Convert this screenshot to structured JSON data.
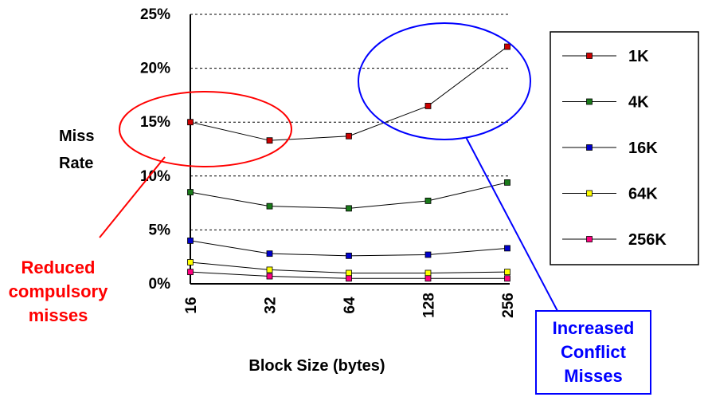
{
  "chart_data": {
    "type": "line",
    "x": [
      "16",
      "32",
      "64",
      "128",
      "256"
    ],
    "xlabel": "Block Size (bytes)",
    "ylabel_lines": [
      "Miss",
      "Rate"
    ],
    "ylim": [
      0,
      25
    ],
    "yticks": [
      "0%",
      "5%",
      "10%",
      "15%",
      "20%",
      "25%"
    ],
    "ytick_values": [
      0,
      5,
      10,
      15,
      20,
      25
    ],
    "grid": "horizontal dashed",
    "legend_position": "right",
    "series": [
      {
        "name": "1K",
        "color": "#cc0000",
        "values": [
          15.0,
          13.3,
          13.7,
          16.5,
          22.0
        ]
      },
      {
        "name": "4K",
        "color": "#1a7a1a",
        "values": [
          8.5,
          7.2,
          7.0,
          7.7,
          9.4
        ]
      },
      {
        "name": "16K",
        "color": "#0000cc",
        "values": [
          4.0,
          2.8,
          2.6,
          2.7,
          3.3
        ]
      },
      {
        "name": "64K",
        "color": "#ffff00",
        "values": [
          2.0,
          1.3,
          1.0,
          1.0,
          1.1
        ]
      },
      {
        "name": "256K",
        "color": "#ff0080",
        "values": [
          1.1,
          0.7,
          0.5,
          0.5,
          0.5
        ]
      }
    ],
    "annotations": [
      {
        "id": "compulsory",
        "color": "#ff0000",
        "lines": [
          "Reduced",
          "compulsory",
          "misses"
        ]
      },
      {
        "id": "conflict",
        "color": "#0000ff",
        "lines": [
          "Increased",
          "Conflict",
          "Misses"
        ]
      }
    ]
  }
}
